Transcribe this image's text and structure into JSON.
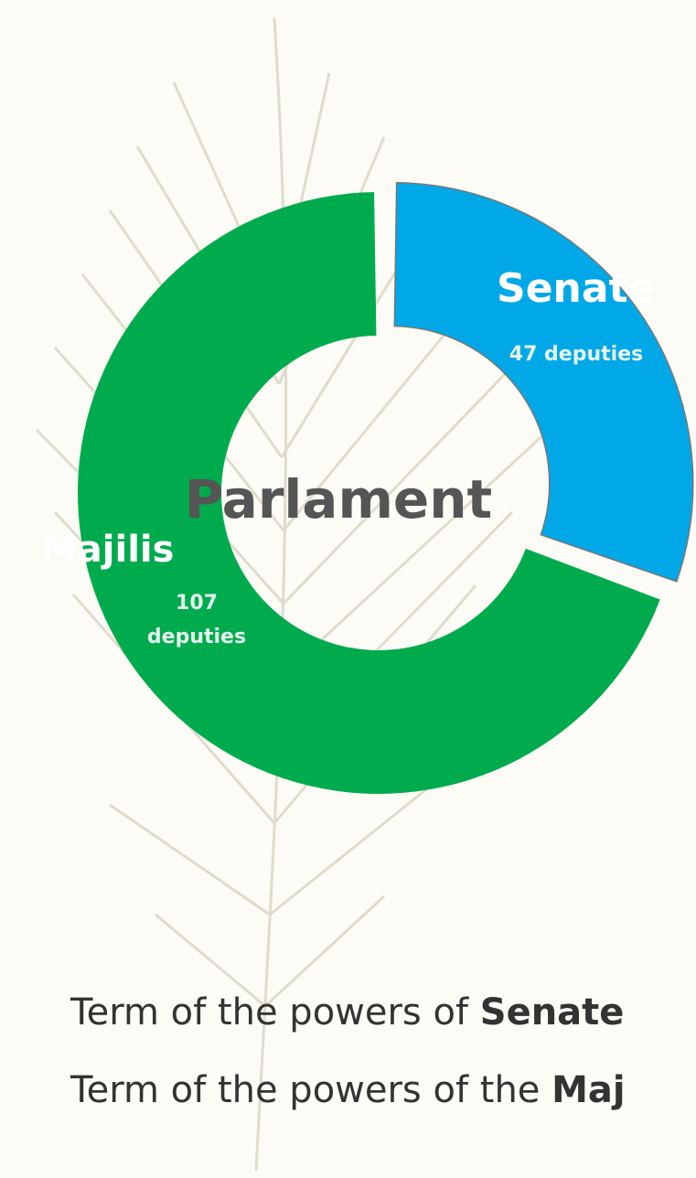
{
  "chart_data": {
    "type": "donut",
    "center_label": "Parlament",
    "categories": [
      "Senate",
      "Majilis"
    ],
    "values": [
      47,
      107
    ],
    "value_labels": [
      "47 deputies",
      "107 deputies"
    ],
    "colors": [
      "#00a8e8",
      "#00ab4e"
    ],
    "exploded": [
      true,
      false
    ]
  },
  "text_lines": [
    {
      "text": "Term of the powers of ",
      "bold": "Senate"
    },
    {
      "text": "Term of the powers of the ",
      "bold": "Maj"
    }
  ]
}
